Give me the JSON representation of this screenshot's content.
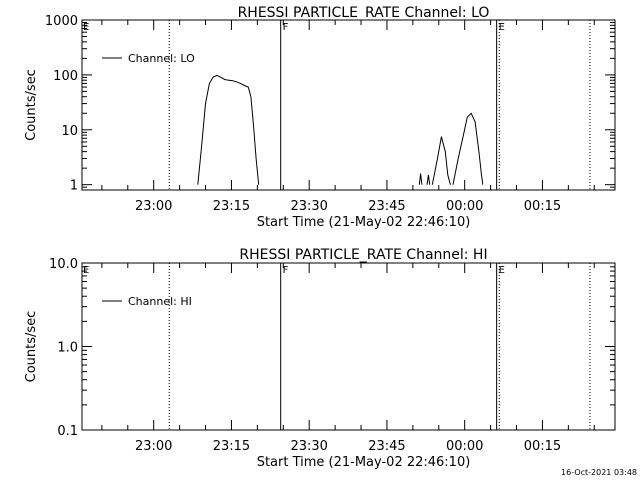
{
  "timestamp": "16-Oct-2021 03:48",
  "chart_data": [
    {
      "type": "line",
      "title": "RHESSI PARTICLE_RATE Channel: LO",
      "xlabel": "Start Time (21-May-02 22:46:10)",
      "ylabel": "Counts/sec",
      "yscale": "log",
      "ylim": [
        0.8,
        1000
      ],
      "xlim": [
        "22:46:10",
        "00:29:00"
      ],
      "x_ticks": [
        "23:00",
        "23:15",
        "23:30",
        "23:45",
        "00:00",
        "00:15"
      ],
      "y_ticks": [
        "1",
        "10",
        "100",
        "1000"
      ],
      "legend": {
        "entries": [
          "Channel: LO"
        ],
        "placement": "top-left"
      },
      "markers": [
        {
          "label": "",
          "time": "23:03:00",
          "style": "dotted"
        },
        {
          "label": "F",
          "time": "23:24:30",
          "style": "solid"
        },
        {
          "label": "E",
          "time": "00:06:10",
          "style": "solid"
        },
        {
          "label": "",
          "time": "00:06:40",
          "style": "dotted"
        },
        {
          "label": "",
          "time": "00:24:10",
          "style": "dotted"
        }
      ],
      "edge_label": "E",
      "series": [
        {
          "name": "Channel: LO",
          "segments": [
            [
              [
                "23:08:30",
                1
              ],
              [
                "23:09:15",
                5
              ],
              [
                "23:10:00",
                30
              ],
              [
                "23:10:45",
                70
              ],
              [
                "23:11:30",
                92
              ],
              [
                "23:12:15",
                98
              ],
              [
                "23:13:00",
                90
              ],
              [
                "23:13:45",
                82
              ],
              [
                "23:14:30",
                80
              ],
              [
                "23:15:15",
                78
              ],
              [
                "23:16:00",
                75
              ],
              [
                "23:16:45",
                70
              ],
              [
                "23:17:30",
                64
              ],
              [
                "23:18:15",
                60
              ],
              [
                "23:18:45",
                40
              ],
              [
                "23:19:15",
                12
              ],
              [
                "23:19:45",
                3
              ],
              [
                "23:20:15",
                1
              ]
            ],
            [
              [
                "23:51:15",
                1
              ],
              [
                "23:51:30",
                1.6
              ],
              [
                "23:51:45",
                1
              ]
            ],
            [
              [
                "23:52:45",
                1
              ],
              [
                "23:53:00",
                1.5
              ],
              [
                "23:53:15",
                1
              ]
            ],
            [
              [
                "23:53:45",
                1
              ],
              [
                "23:54:45",
                3
              ],
              [
                "23:55:30",
                7.5
              ],
              [
                "23:56:15",
                4
              ],
              [
                "23:56:45",
                1.5
              ],
              [
                "23:57:15",
                1
              ]
            ],
            [
              [
                "23:57:45",
                1
              ],
              [
                "23:58:45",
                3
              ],
              [
                "23:59:45",
                8
              ],
              [
                "00:00:30",
                17
              ],
              [
                "00:01:15",
                20
              ],
              [
                "00:02:00",
                14
              ],
              [
                "00:02:45",
                4
              ],
              [
                "00:03:15",
                1.5
              ],
              [
                "00:03:30",
                1
              ]
            ]
          ]
        }
      ]
    },
    {
      "type": "line",
      "title": "RHESSI PARTICLE_RATE Channel: HI",
      "xlabel": "Start Time (21-May-02 22:46:10)",
      "ylabel": "Counts/sec",
      "yscale": "log",
      "ylim": [
        0.1,
        10
      ],
      "xlim": [
        "22:46:10",
        "00:29:00"
      ],
      "x_ticks": [
        "23:00",
        "23:15",
        "23:30",
        "23:45",
        "00:00",
        "00:15"
      ],
      "y_ticks": [
        "0.1",
        "1.0",
        "10.0"
      ],
      "legend": {
        "entries": [
          "Channel: HI"
        ],
        "placement": "top-left"
      },
      "markers": [
        {
          "label": "",
          "time": "23:03:00",
          "style": "dotted"
        },
        {
          "label": "F",
          "time": "23:24:30",
          "style": "solid"
        },
        {
          "label": "E",
          "time": "00:06:10",
          "style": "solid"
        },
        {
          "label": "",
          "time": "00:06:40",
          "style": "dotted"
        },
        {
          "label": "",
          "time": "00:24:10",
          "style": "dotted"
        }
      ],
      "edge_label": "E",
      "series": [
        {
          "name": "Channel: HI",
          "segments": []
        }
      ]
    }
  ]
}
